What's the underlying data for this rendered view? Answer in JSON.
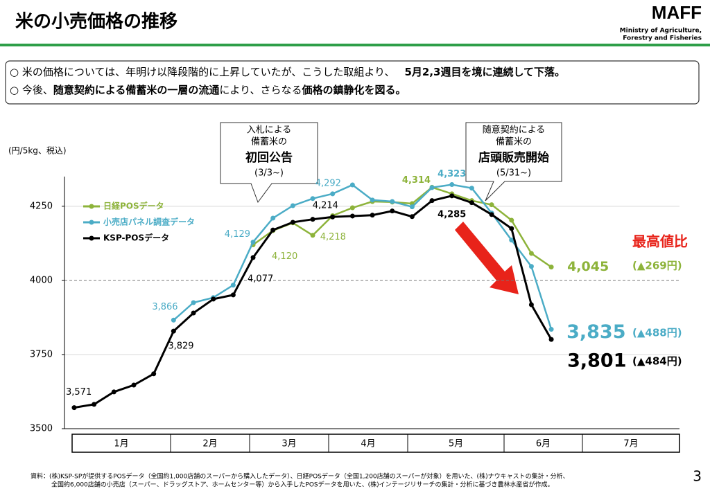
{
  "header": {
    "title": "米の小売価格の推移",
    "logo": "MAFF",
    "logo_sub": [
      "Ministry of Agriculture,",
      "Forestry and Fisheries"
    ]
  },
  "notes": [
    [
      {
        "text": "○ 米の価格については、年明け以降段階的に上昇していたが、こうした取組より、",
        "bold": false
      },
      {
        "text": "5月2,3週目を境に連続して下落。",
        "bold": true
      }
    ],
    [
      {
        "text": "○ 今後、",
        "bold": false
      },
      {
        "text": "随意契約による備蓄米の一層の流通",
        "bold": true
      },
      {
        "text": "により、さらなる",
        "bold": false
      },
      {
        "text": "価格の鎮静化を図る。",
        "bold": true
      }
    ]
  ],
  "callouts": [
    {
      "lines": [
        "入札による",
        "備蓄米の"
      ],
      "headline": "初回公告",
      "date": "(3/3~)"
    },
    {
      "lines": [
        "随意契約による",
        "備蓄米の"
      ],
      "headline": "店頭販売開始",
      "date": "(5/31~)"
    }
  ],
  "chart_data": {
    "type": "line",
    "y_label": "(円/5kg、税込)",
    "categories": [
      null,
      null,
      null,
      null,
      null,
      null,
      null,
      null,
      null,
      null,
      null,
      null,
      null,
      null,
      null,
      null,
      null,
      null,
      null,
      null,
      null,
      null,
      null,
      null,
      null
    ],
    "months": [
      "1月",
      "2月",
      "3月",
      "4月",
      "5月",
      "6月",
      "7月"
    ],
    "ylim": [
      3500,
      4350
    ],
    "yticks": [
      3500,
      3750,
      4000,
      4250
    ],
    "grid": true,
    "reference_line": 4000,
    "series": [
      {
        "name": "日経POSデータ",
        "color": "#8db33a",
        "values": [
          null,
          null,
          null,
          null,
          null,
          null,
          null,
          null,
          null,
          4120,
          4168,
          4194,
          4152,
          4218,
          4245,
          4266,
          4264,
          4259,
          4314,
          4292,
          4269,
          4255,
          4203,
          4091,
          4045
        ],
        "value_labels": [
          null,
          null,
          null,
          null,
          null,
          null,
          null,
          null,
          null,
          "4,120",
          null,
          null,
          null,
          "4,218",
          null,
          null,
          null,
          null,
          "4,314",
          null,
          null,
          null,
          null,
          null,
          "4,045"
        ]
      },
      {
        "name": "小売店パネル調査データ",
        "color": "#4bacc6",
        "values": [
          null,
          null,
          null,
          null,
          null,
          3866,
          3925,
          3942,
          3984,
          4129,
          4210,
          4252,
          4276,
          4292,
          4322,
          4271,
          4266,
          4248,
          4313,
          4323,
          4311,
          4227,
          4136,
          4047,
          3835
        ],
        "value_labels": [
          null,
          null,
          null,
          null,
          null,
          "3,866",
          null,
          null,
          null,
          "4,129",
          null,
          null,
          null,
          "4,292",
          null,
          null,
          null,
          null,
          null,
          "4,323",
          null,
          null,
          null,
          null,
          "3,835"
        ]
      },
      {
        "name": "KSP-POSデータ",
        "color": "#000000",
        "values": [
          3571,
          3582,
          3624,
          3647,
          3685,
          3829,
          3890,
          3937,
          3951,
          4077,
          4170,
          4196,
          4206,
          4214,
          4217,
          4220,
          4234,
          4215,
          4269,
          4285,
          4262,
          4222,
          4175,
          3918,
          3801
        ],
        "value_labels": [
          "3,571",
          null,
          null,
          null,
          null,
          "3,829",
          null,
          null,
          null,
          "4,077",
          null,
          null,
          null,
          "4,214",
          null,
          null,
          null,
          null,
          null,
          "4,285",
          null,
          null,
          null,
          null,
          "3,801"
        ]
      }
    ],
    "annotations": {
      "heading": "最高値比",
      "diffs": [
        "(▲269円)",
        "(▲488円)",
        "(▲484円)"
      ]
    }
  },
  "footer": {
    "source": [
      "資料：(株)KSP-SPが提供するPOSデータ（全国約1,000店舗のスーパーから購入したデータ）、日経POSデータ（全国1,200店舗のスーパーが対象）を用いた、(株)ナウキャストの集計・分析、",
      "全国約6,000店舗の小売店（スーパー、ドラッグストア、ホームセンター等）から入手したPOSデータを用いた、(株)インテージリサーチの集計・分析に基づき農林水産省が作成。"
    ],
    "page": "3"
  }
}
